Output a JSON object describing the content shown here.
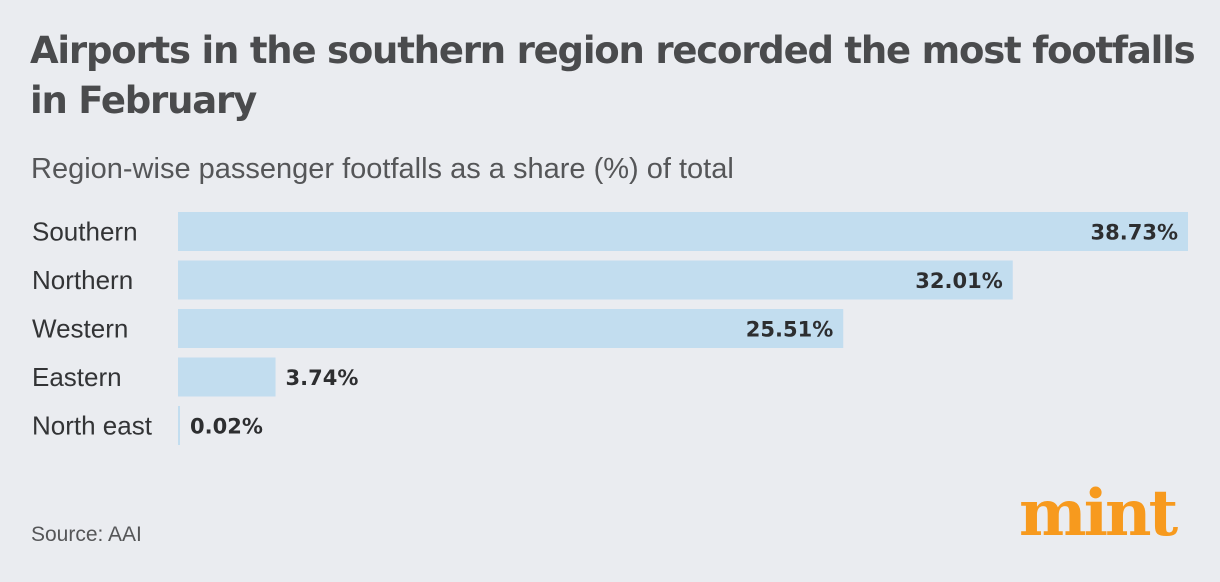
{
  "header": {
    "title": "Airports in the southern region recorded the most footfalls in February",
    "subtitle": "Region-wise passenger footfalls as a share (%) of total"
  },
  "footer": {
    "source": "Source: AAI",
    "logo": "mint"
  },
  "colors": {
    "bar": "#c2ddef",
    "logo": "#f79a1e",
    "background": "#eaecf0"
  },
  "chart_data": {
    "type": "bar",
    "orientation": "horizontal",
    "title": "Airports in the southern region recorded the most footfalls in February",
    "subtitle": "Region-wise passenger footfalls as a share (%) of total",
    "categories": [
      "Southern",
      "Northern",
      "Western",
      "Eastern",
      "North east"
    ],
    "values": [
      38.73,
      32.01,
      25.51,
      3.74,
      0.02
    ],
    "value_labels": [
      "38.73%",
      "32.01%",
      "25.51%",
      "3.74%",
      "0.02%"
    ],
    "xlabel": "",
    "ylabel": "",
    "xlim": [
      0,
      38.73
    ],
    "grid": false,
    "legend": "none"
  }
}
